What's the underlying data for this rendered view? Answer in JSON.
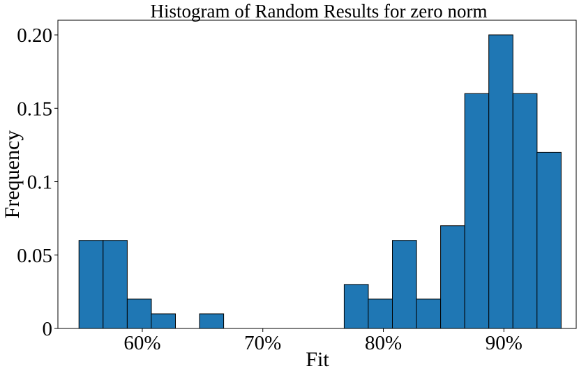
{
  "chart_data": {
    "type": "bar",
    "title": "Histogram of Random Results for zero norm",
    "xlabel": "Fit",
    "ylabel": "Frequency",
    "bin_width": 2,
    "bins": [
      {
        "start": 54.75,
        "end": 56.75,
        "value": 0.06
      },
      {
        "start": 56.75,
        "end": 58.75,
        "value": 0.06
      },
      {
        "start": 58.75,
        "end": 60.75,
        "value": 0.02
      },
      {
        "start": 60.75,
        "end": 62.75,
        "value": 0.01
      },
      {
        "start": 64.75,
        "end": 66.75,
        "value": 0.01
      },
      {
        "start": 76.75,
        "end": 78.75,
        "value": 0.03
      },
      {
        "start": 78.75,
        "end": 80.75,
        "value": 0.02
      },
      {
        "start": 80.75,
        "end": 82.75,
        "value": 0.06
      },
      {
        "start": 82.75,
        "end": 84.75,
        "value": 0.02
      },
      {
        "start": 84.75,
        "end": 86.75,
        "value": 0.07
      },
      {
        "start": 86.75,
        "end": 88.75,
        "value": 0.16
      },
      {
        "start": 88.75,
        "end": 90.75,
        "value": 0.2
      },
      {
        "start": 90.75,
        "end": 92.75,
        "value": 0.16
      },
      {
        "start": 92.75,
        "end": 94.75,
        "value": 0.12
      }
    ],
    "xlim": [
      53.0,
      96.0
    ],
    "ylim": [
      0,
      0.21
    ],
    "x_ticks": [
      {
        "value": 60,
        "label": "60%"
      },
      {
        "value": 70,
        "label": "70%"
      },
      {
        "value": 80,
        "label": "80%"
      },
      {
        "value": 90,
        "label": "90%"
      }
    ],
    "y_ticks": [
      {
        "value": 0,
        "label": "0"
      },
      {
        "value": 0.05,
        "label": "0.05"
      },
      {
        "value": 0.1,
        "label": "0.1"
      },
      {
        "value": 0.15,
        "label": "0.15"
      },
      {
        "value": 0.2,
        "label": "0.20"
      }
    ],
    "grid": false,
    "colors": {
      "bar_fill": "#1f77b4",
      "bar_edge": "#000000"
    }
  }
}
